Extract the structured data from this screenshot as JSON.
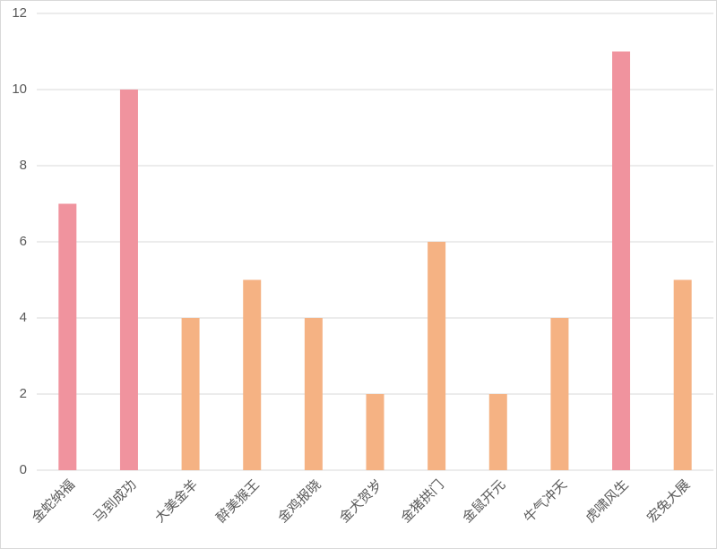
{
  "chart_data": {
    "type": "bar",
    "categories": [
      "金蛇纳福",
      "马到成功",
      "大美金羊",
      "醉美猴王",
      "金鸡报晓",
      "金犬贺岁",
      "金猪拱门",
      "金鼠开元",
      "牛气冲天",
      "虎啸风生",
      "宏兔大展"
    ],
    "values": [
      7,
      10,
      4,
      5,
      4,
      2,
      6,
      2,
      4,
      11,
      5
    ],
    "colors": [
      "#f0939e",
      "#f0939e",
      "#f5b283",
      "#f5b283",
      "#f5b283",
      "#f5b283",
      "#f5b283",
      "#f5b283",
      "#f5b283",
      "#f0939e",
      "#f5b283"
    ],
    "ylim": [
      0,
      12
    ],
    "yticks": [
      0,
      2,
      4,
      6,
      8,
      10,
      12
    ],
    "grid": true
  }
}
